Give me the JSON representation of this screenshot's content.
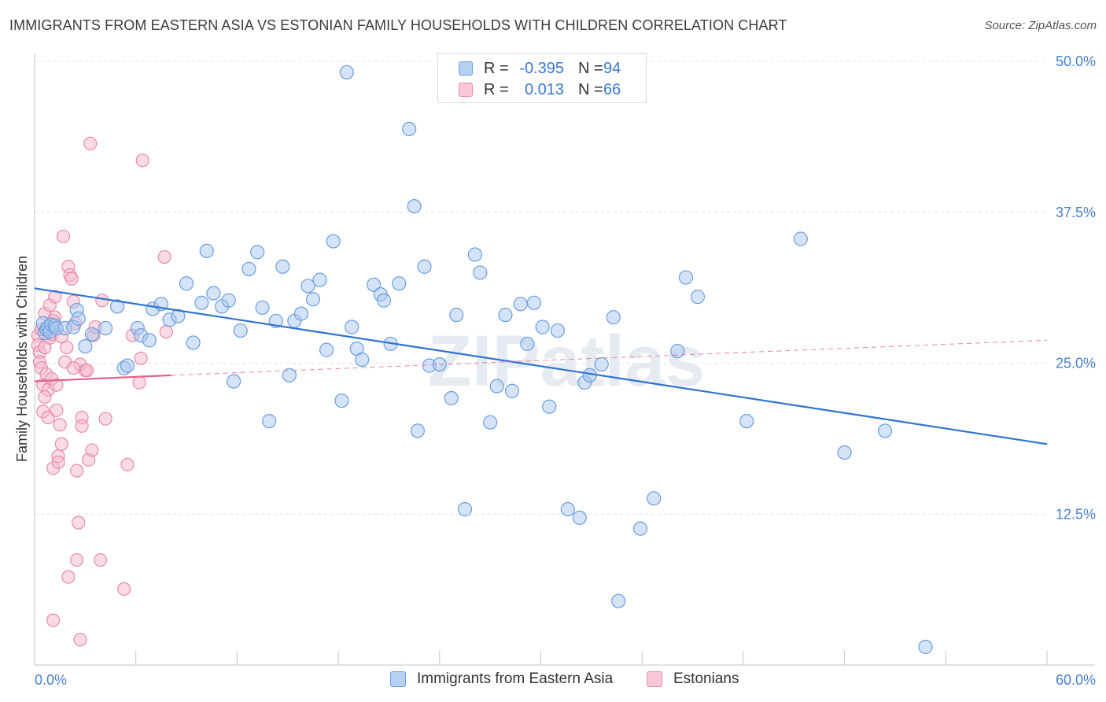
{
  "header": {
    "title": "IMMIGRANTS FROM EASTERN ASIA VS ESTONIAN FAMILY HOUSEHOLDS WITH CHILDREN CORRELATION CHART",
    "source": "Source: ZipAtlas.com"
  },
  "colors": {
    "blue_fill": "#a9c8f0",
    "blue_stroke": "#6b9edf",
    "blue_line": "#2f73d4",
    "pink_fill": "#f5b8cc",
    "pink_stroke": "#e88aa8",
    "pink_line": "#e0648c",
    "tick_text": "#4a7fcf",
    "grid": "#dde1e7"
  },
  "legend": {
    "rows": [
      {
        "r_label": "R =",
        "r_value": "-0.395",
        "n_label": "N =",
        "n_value": "94"
      },
      {
        "r_label": "R =",
        "r_value": "0.013",
        "n_label": "N =",
        "n_value": "66"
      }
    ]
  },
  "bottom_legend": {
    "series1": "Immigrants from Eastern Asia",
    "series2": "Estonians"
  },
  "watermark": "ZIPatlas",
  "chart_data": {
    "type": "scatter",
    "title": "IMMIGRANTS FROM EASTERN ASIA VS ESTONIAN FAMILY HOUSEHOLDS WITH CHILDREN CORRELATION CHART",
    "xlabel": "",
    "ylabel": "Family Households with Children",
    "xlim": [
      0,
      60
    ],
    "ylim": [
      0,
      50
    ],
    "x_tick_labels": [
      "0.0%",
      "60.0%"
    ],
    "y_tick_labels": [
      "12.5%",
      "25.0%",
      "37.5%",
      "50.0%"
    ],
    "y_ticks": [
      12.5,
      25.0,
      37.5,
      50.0
    ],
    "grid": true,
    "legend_position": "top-center",
    "series": [
      {
        "name": "Immigrants from Eastern Asia",
        "R": -0.395,
        "N": 94,
        "trend": {
          "x": [
            0,
            60
          ],
          "y": [
            31.2,
            18.3
          ]
        },
        "points": [
          [
            0.5,
            28.3
          ],
          [
            0.6,
            27.5
          ],
          [
            0.7,
            27.8
          ],
          [
            0.8,
            28.0
          ],
          [
            0.9,
            27.6
          ],
          [
            1.0,
            28.2
          ],
          [
            1.2,
            28.1
          ],
          [
            1.3,
            27.9
          ],
          [
            1.8,
            27.9
          ],
          [
            2.3,
            28.0
          ],
          [
            2.5,
            29.4
          ],
          [
            2.6,
            28.7
          ],
          [
            3.0,
            26.4
          ],
          [
            3.4,
            27.4
          ],
          [
            4.2,
            27.9
          ],
          [
            4.9,
            29.7
          ],
          [
            5.3,
            24.6
          ],
          [
            5.5,
            24.8
          ],
          [
            6.1,
            27.9
          ],
          [
            6.3,
            27.3
          ],
          [
            6.8,
            26.9
          ],
          [
            7.0,
            29.5
          ],
          [
            7.5,
            29.9
          ],
          [
            8.0,
            28.6
          ],
          [
            8.5,
            28.9
          ],
          [
            9.0,
            31.6
          ],
          [
            9.4,
            26.7
          ],
          [
            9.9,
            30.0
          ],
          [
            10.2,
            34.3
          ],
          [
            10.6,
            30.8
          ],
          [
            11.1,
            29.7
          ],
          [
            11.5,
            30.2
          ],
          [
            11.8,
            23.5
          ],
          [
            12.2,
            27.7
          ],
          [
            12.7,
            32.8
          ],
          [
            13.2,
            34.2
          ],
          [
            13.5,
            29.6
          ],
          [
            13.9,
            20.2
          ],
          [
            14.3,
            28.5
          ],
          [
            14.7,
            33.0
          ],
          [
            15.1,
            24.0
          ],
          [
            15.4,
            28.5
          ],
          [
            15.8,
            29.1
          ],
          [
            16.2,
            31.4
          ],
          [
            16.5,
            30.3
          ],
          [
            16.9,
            31.9
          ],
          [
            17.3,
            26.1
          ],
          [
            17.7,
            35.1
          ],
          [
            18.2,
            21.9
          ],
          [
            18.8,
            28.0
          ],
          [
            19.1,
            26.2
          ],
          [
            19.4,
            25.3
          ],
          [
            20.1,
            31.5
          ],
          [
            20.5,
            30.7
          ],
          [
            20.7,
            30.2
          ],
          [
            21.1,
            26.6
          ],
          [
            21.6,
            31.6
          ],
          [
            22.2,
            44.4
          ],
          [
            22.5,
            38.0
          ],
          [
            22.7,
            19.4
          ],
          [
            23.1,
            33.0
          ],
          [
            23.4,
            24.8
          ],
          [
            24.0,
            24.9
          ],
          [
            24.7,
            22.1
          ],
          [
            25.0,
            29.0
          ],
          [
            25.5,
            12.9
          ],
          [
            26.1,
            34.0
          ],
          [
            26.4,
            32.5
          ],
          [
            27.0,
            20.1
          ],
          [
            27.4,
            23.1
          ],
          [
            27.9,
            29.0
          ],
          [
            28.3,
            22.7
          ],
          [
            28.8,
            29.9
          ],
          [
            29.2,
            26.6
          ],
          [
            29.6,
            30.0
          ],
          [
            30.1,
            28.0
          ],
          [
            30.5,
            21.4
          ],
          [
            31.0,
            27.7
          ],
          [
            31.6,
            12.9
          ],
          [
            32.3,
            12.2
          ],
          [
            32.6,
            23.4
          ],
          [
            32.9,
            24.0
          ],
          [
            33.6,
            24.9
          ],
          [
            34.3,
            28.8
          ],
          [
            34.6,
            5.3
          ],
          [
            35.9,
            11.3
          ],
          [
            36.7,
            13.8
          ],
          [
            38.1,
            26.0
          ],
          [
            38.6,
            32.1
          ],
          [
            39.3,
            30.5
          ],
          [
            42.2,
            20.2
          ],
          [
            45.4,
            35.3
          ],
          [
            48.0,
            17.6
          ],
          [
            50.4,
            19.4
          ],
          [
            52.8,
            1.5
          ],
          [
            18.5,
            49.1
          ]
        ]
      },
      {
        "name": "Estonians",
        "R": 0.013,
        "N": 66,
        "trend_solid": {
          "x": [
            0,
            8.1
          ],
          "y": [
            23.5,
            24.0
          ]
        },
        "trend_dashed": {
          "x": [
            8.1,
            60
          ],
          "y": [
            24.0,
            26.9
          ]
        },
        "points": [
          [
            0.2,
            27.3
          ],
          [
            0.2,
            26.5
          ],
          [
            0.3,
            25.9
          ],
          [
            0.3,
            25.1
          ],
          [
            0.4,
            24.6
          ],
          [
            0.4,
            27.8
          ],
          [
            0.5,
            23.2
          ],
          [
            0.5,
            21.0
          ],
          [
            0.6,
            26.3
          ],
          [
            0.6,
            29.1
          ],
          [
            0.7,
            27.7
          ],
          [
            0.7,
            24.1
          ],
          [
            0.8,
            22.8
          ],
          [
            0.8,
            20.5
          ],
          [
            0.9,
            27.1
          ],
          [
            0.9,
            29.8
          ],
          [
            1.0,
            27.4
          ],
          [
            1.0,
            23.7
          ],
          [
            1.1,
            16.3
          ],
          [
            1.1,
            3.7
          ],
          [
            1.2,
            28.8
          ],
          [
            1.2,
            30.5
          ],
          [
            1.3,
            21.1
          ],
          [
            1.3,
            23.2
          ],
          [
            1.4,
            17.3
          ],
          [
            1.4,
            16.8
          ],
          [
            1.5,
            19.9
          ],
          [
            1.6,
            27.2
          ],
          [
            1.7,
            35.5
          ],
          [
            1.8,
            25.1
          ],
          [
            1.9,
            26.3
          ],
          [
            2.0,
            33.0
          ],
          [
            2.0,
            7.3
          ],
          [
            2.1,
            32.3
          ],
          [
            2.2,
            32.0
          ],
          [
            2.3,
            30.1
          ],
          [
            2.4,
            28.3
          ],
          [
            2.5,
            8.7
          ],
          [
            2.5,
            16.1
          ],
          [
            2.6,
            11.8
          ],
          [
            2.7,
            2.1
          ],
          [
            2.7,
            24.9
          ],
          [
            2.8,
            20.5
          ],
          [
            2.8,
            19.8
          ],
          [
            3.0,
            24.4
          ],
          [
            3.1,
            24.4
          ],
          [
            3.2,
            17.0
          ],
          [
            3.3,
            43.2
          ],
          [
            3.4,
            17.8
          ],
          [
            3.5,
            27.3
          ],
          [
            3.9,
            8.7
          ],
          [
            4.0,
            30.2
          ],
          [
            4.2,
            20.4
          ],
          [
            5.3,
            6.3
          ],
          [
            5.5,
            16.6
          ],
          [
            5.8,
            27.3
          ],
          [
            6.2,
            23.4
          ],
          [
            6.3,
            25.4
          ],
          [
            6.4,
            41.8
          ],
          [
            7.7,
            33.8
          ],
          [
            7.8,
            27.6
          ],
          [
            2.3,
            24.6
          ],
          [
            1.6,
            18.3
          ],
          [
            3.6,
            28.0
          ],
          [
            0.6,
            22.2
          ],
          [
            1.1,
            28.5
          ]
        ]
      }
    ]
  }
}
